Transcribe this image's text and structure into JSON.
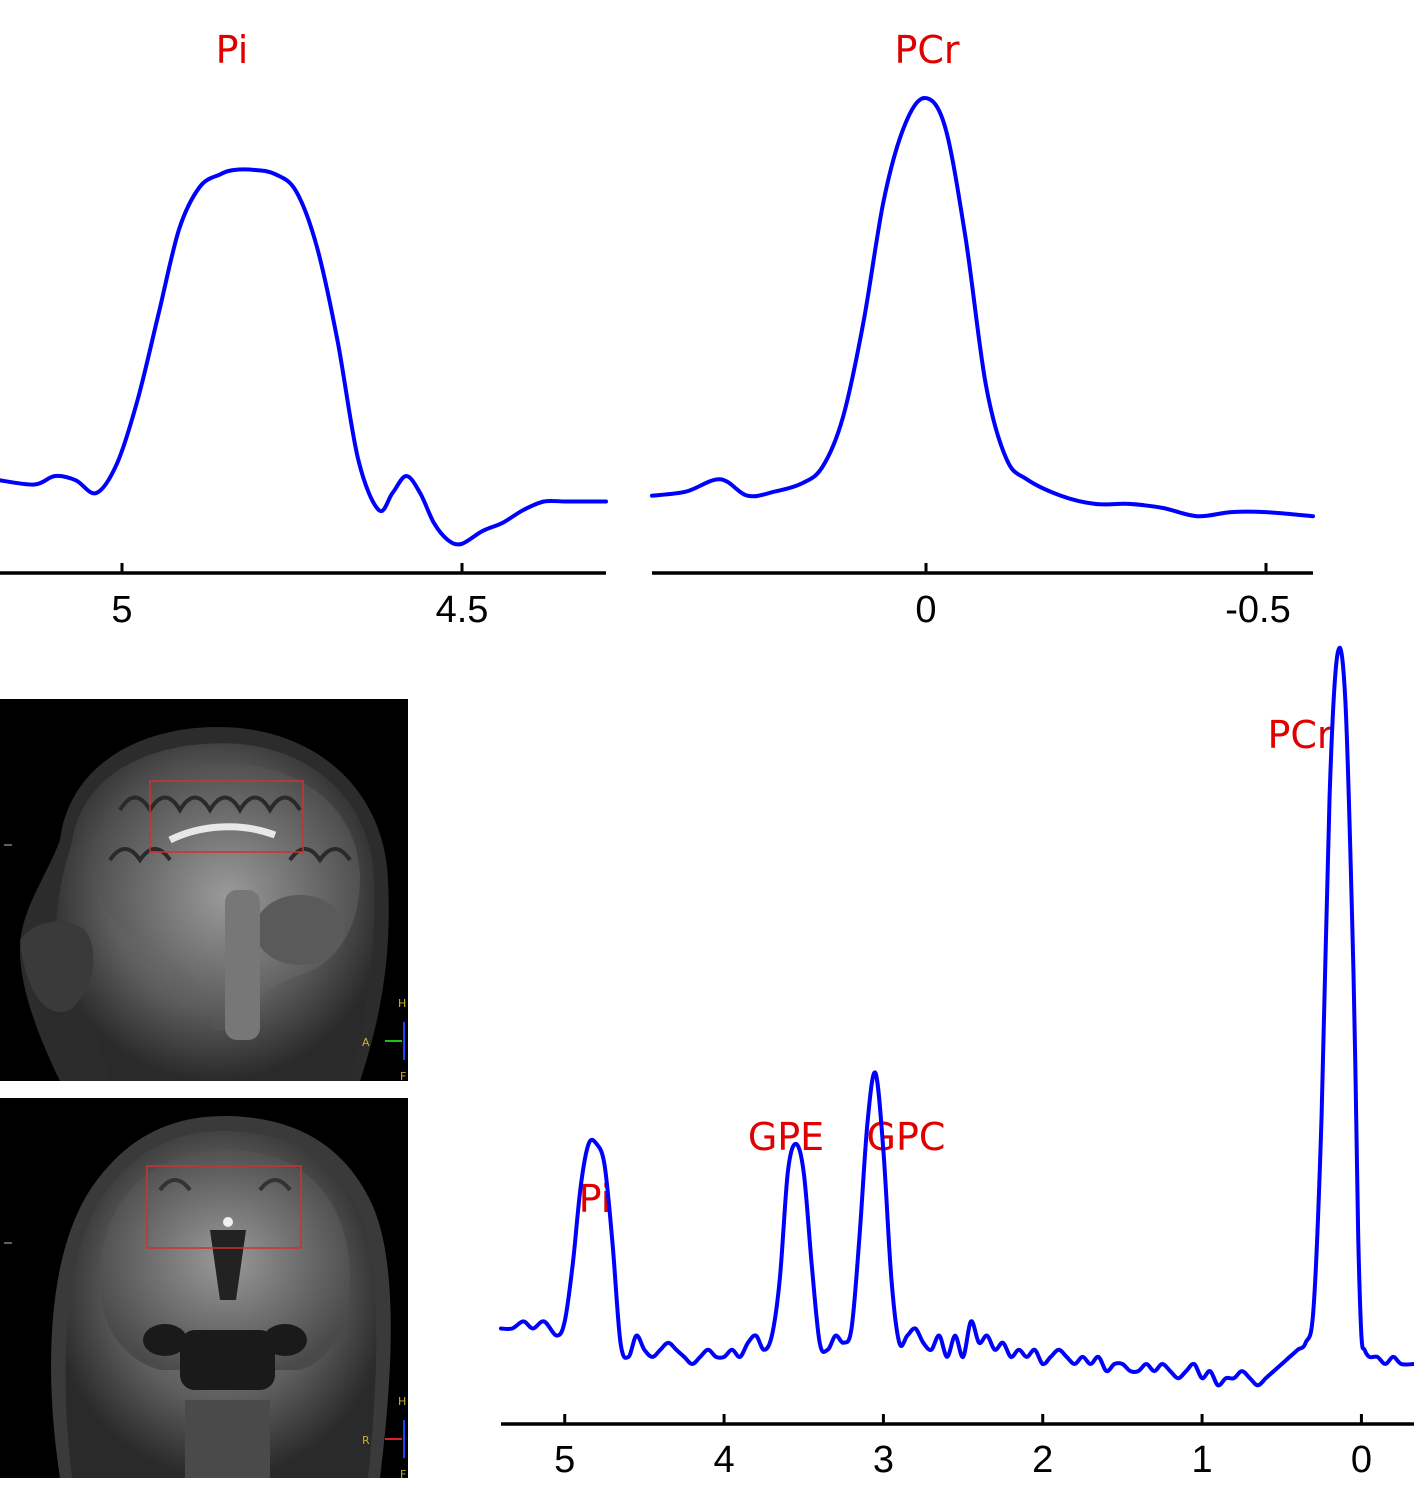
{
  "chart_data": [
    {
      "type": "line",
      "xlabel": "",
      "ylabel": "",
      "xlim": [
        5.17,
        4.29
      ],
      "x_ticks": [
        5,
        4.5
      ],
      "tick_labels": [
        "5",
        "4.5"
      ],
      "annotations": [
        {
          "text": "Pi",
          "x": 4.84
        }
      ],
      "series": [
        {
          "color": "#0000ff",
          "x": [
            5.17,
            5.12,
            5.09,
            5.06,
            5.03,
            5.0,
            4.97,
            4.94,
            4.91,
            4.88,
            4.85,
            4.83,
            4.8,
            4.77,
            4.74,
            4.71,
            4.68,
            4.65,
            4.62,
            4.6,
            4.58,
            4.56,
            4.54,
            4.52,
            4.5,
            4.47,
            4.44,
            4.41,
            4.38,
            4.35,
            4.32,
            4.29
          ],
          "y": [
            0.07,
            0.06,
            0.08,
            0.07,
            0.04,
            0.11,
            0.26,
            0.46,
            0.66,
            0.76,
            0.79,
            0.8,
            0.8,
            0.79,
            0.75,
            0.62,
            0.4,
            0.12,
            0.0,
            0.04,
            0.08,
            0.04,
            -0.03,
            -0.07,
            -0.08,
            -0.05,
            -0.03,
            0.0,
            0.02,
            0.02,
            0.02,
            0.02
          ]
        }
      ]
    },
    {
      "type": "line",
      "xlabel": "",
      "ylabel": "",
      "xlim": [
        0.4,
        -0.57
      ],
      "x_ticks": [
        0,
        -0.5
      ],
      "tick_labels": [
        "0",
        "-0.5"
      ],
      "annotations": [
        {
          "text": "PCr",
          "x": 0.0
        }
      ],
      "series": [
        {
          "color": "#0000ff",
          "x": [
            0.4,
            0.35,
            0.3,
            0.26,
            0.22,
            0.18,
            0.15,
            0.12,
            0.09,
            0.06,
            0.03,
            0.0,
            -0.03,
            -0.06,
            -0.09,
            -0.12,
            -0.15,
            -0.2,
            -0.25,
            -0.3,
            -0.35,
            -0.4,
            -0.45,
            -0.5,
            -0.57
          ],
          "y": [
            0.03,
            0.04,
            0.07,
            0.03,
            0.04,
            0.06,
            0.1,
            0.22,
            0.45,
            0.75,
            0.93,
            1.0,
            0.93,
            0.66,
            0.3,
            0.12,
            0.07,
            0.03,
            0.01,
            0.01,
            0.0,
            -0.02,
            -0.01,
            -0.01,
            -0.02
          ]
        }
      ]
    },
    {
      "type": "line",
      "xlabel": "",
      "ylabel": "",
      "xlim": [
        5.4,
        -0.33
      ],
      "x_ticks": [
        5,
        4,
        3,
        2,
        1,
        0
      ],
      "tick_labels": [
        "5",
        "4",
        "3",
        "2",
        "1",
        "0"
      ],
      "annotations": [
        {
          "text": "Pi",
          "x": 4.8
        },
        {
          "text": "GPE",
          "x": 3.45
        },
        {
          "text": "GPC",
          "x": 2.7
        },
        {
          "text": "PCr",
          "x": 0.37
        }
      ],
      "series": [
        {
          "color": "#0000ff",
          "x": [
            5.4,
            5.33,
            5.26,
            5.2,
            5.13,
            5.05,
            5.0,
            4.95,
            4.9,
            4.85,
            4.8,
            4.75,
            4.7,
            4.65,
            4.6,
            4.55,
            4.5,
            4.45,
            4.4,
            4.35,
            4.3,
            4.25,
            4.2,
            4.15,
            4.1,
            4.05,
            4.0,
            3.95,
            3.9,
            3.85,
            3.8,
            3.75,
            3.7,
            3.65,
            3.6,
            3.55,
            3.5,
            3.45,
            3.4,
            3.35,
            3.3,
            3.25,
            3.2,
            3.15,
            3.1,
            3.05,
            3.0,
            2.95,
            2.9,
            2.85,
            2.8,
            2.75,
            2.7,
            2.65,
            2.6,
            2.55,
            2.5,
            2.45,
            2.4,
            2.35,
            2.3,
            2.25,
            2.2,
            2.15,
            2.1,
            2.05,
            2.0,
            1.95,
            1.9,
            1.85,
            1.8,
            1.75,
            1.7,
            1.65,
            1.6,
            1.55,
            1.5,
            1.45,
            1.4,
            1.35,
            1.3,
            1.25,
            1.2,
            1.15,
            1.1,
            1.05,
            1.0,
            0.95,
            0.9,
            0.85,
            0.8,
            0.75,
            0.7,
            0.65,
            0.6,
            0.55,
            0.5,
            0.45,
            0.4,
            0.35,
            0.3,
            0.25,
            0.2,
            0.15,
            0.1,
            0.05,
            0.02,
            0.0,
            -0.02,
            -0.05,
            -0.1,
            -0.15,
            -0.2,
            -0.25,
            -0.33
          ],
          "y": [
            0.05,
            0.05,
            0.06,
            0.05,
            0.06,
            0.04,
            0.06,
            0.14,
            0.25,
            0.31,
            0.31,
            0.28,
            0.17,
            0.03,
            0.01,
            0.04,
            0.02,
            0.01,
            0.02,
            0.03,
            0.02,
            0.01,
            0.0,
            0.01,
            0.02,
            0.01,
            0.01,
            0.02,
            0.01,
            0.03,
            0.04,
            0.02,
            0.04,
            0.12,
            0.27,
            0.31,
            0.27,
            0.14,
            0.03,
            0.02,
            0.04,
            0.03,
            0.05,
            0.18,
            0.34,
            0.41,
            0.3,
            0.12,
            0.03,
            0.04,
            0.05,
            0.03,
            0.02,
            0.04,
            0.01,
            0.04,
            0.01,
            0.06,
            0.03,
            0.04,
            0.02,
            0.03,
            0.01,
            0.02,
            0.01,
            0.02,
            0.0,
            0.01,
            0.02,
            0.01,
            0.0,
            0.01,
            0.0,
            0.01,
            -0.01,
            0.0,
            0.0,
            -0.01,
            -0.01,
            0.0,
            -0.01,
            0.0,
            -0.01,
            -0.02,
            -0.01,
            0.0,
            -0.02,
            -0.01,
            -0.03,
            -0.02,
            -0.02,
            -0.01,
            -0.02,
            -0.03,
            -0.02,
            -0.01,
            0.0,
            0.01,
            0.02,
            0.03,
            0.08,
            0.35,
            0.8,
            1.0,
            0.93,
            0.55,
            0.18,
            0.04,
            0.02,
            0.01,
            0.01,
            0.0,
            0.01,
            0.0,
            0.0
          ]
        }
      ]
    }
  ],
  "images": {
    "sagittal": {
      "orientation_markers": [
        "H",
        "A",
        "F"
      ],
      "roi_color": "#d03030"
    },
    "coronal": {
      "orientation_markers": [
        "H",
        "R",
        "F"
      ],
      "roi_color": "#d03030"
    }
  }
}
